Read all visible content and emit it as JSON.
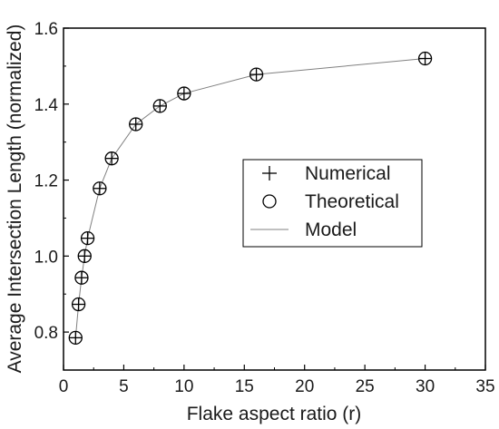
{
  "chart_data": {
    "type": "scatter",
    "title": "",
    "xlabel": "Flake aspect ratio (r)",
    "ylabel": "Average Intersection Length (normalized)",
    "xlim": [
      0,
      35
    ],
    "ylim": [
      0.7,
      1.6
    ],
    "xticks": [
      0,
      5,
      10,
      15,
      20,
      25,
      30,
      35
    ],
    "yticks": [
      0.8,
      1.0,
      1.2,
      1.4,
      1.6
    ],
    "xtick_labels": [
      "0",
      "5",
      "10",
      "15",
      "20",
      "25",
      "30",
      "35"
    ],
    "ytick_labels": [
      "0.8",
      "1.0",
      "1.2",
      "1.4",
      "1.6"
    ],
    "x": [
      1,
      1.25,
      1.5,
      1.75,
      2,
      3,
      4,
      6,
      8,
      10,
      16,
      30
    ],
    "series": [
      {
        "name": "Numerical",
        "marker": "plus",
        "values": [
          0.785,
          0.873,
          0.943,
          1.0,
          1.047,
          1.178,
          1.257,
          1.347,
          1.395,
          1.428,
          1.478,
          1.52
        ]
      },
      {
        "name": "Theoretical",
        "marker": "circle",
        "values": [
          0.785,
          0.873,
          0.943,
          1.0,
          1.047,
          1.178,
          1.257,
          1.347,
          1.395,
          1.428,
          1.478,
          1.52
        ]
      },
      {
        "name": "Model",
        "marker": "line",
        "values": [
          0.785,
          0.873,
          0.943,
          1.0,
          1.047,
          1.178,
          1.257,
          1.347,
          1.395,
          1.428,
          1.478,
          1.52
        ]
      }
    ],
    "grid": false,
    "legend": {
      "placement": "center-right"
    },
    "colors": {
      "markers": "#000000",
      "line": "#808080"
    }
  }
}
